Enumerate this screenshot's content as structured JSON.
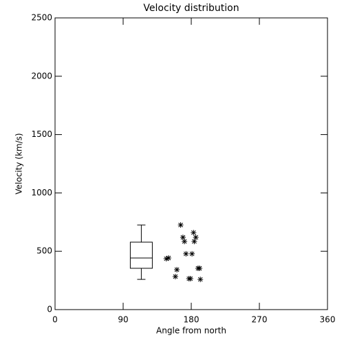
{
  "chart_data": {
    "type": "scatter",
    "title": "Velocity distribution",
    "x_label": "Angle from north",
    "y_label": "Velocity (km/s)",
    "xlim": [
      0,
      360
    ],
    "xticks": [
      0,
      90,
      180,
      270,
      360
    ],
    "ylim": [
      0,
      2500
    ],
    "yticks": [
      0,
      500,
      1000,
      1500,
      2000,
      2500
    ],
    "color": "#000000",
    "points": {
      "x": [
        147,
        150,
        166,
        169,
        171,
        173,
        181,
        183,
        186,
        184,
        161,
        159,
        177,
        179,
        189,
        191,
        192
      ],
      "y": [
        436,
        442,
        725,
        619,
        584,
        478,
        478,
        660,
        619,
        584,
        342,
        283,
        265,
        265,
        354,
        354,
        259
      ]
    },
    "box": {
      "x": 114,
      "whisker_low": 259,
      "q1": 354,
      "median": 442,
      "q3": 578,
      "whisker_high": 725
    }
  }
}
